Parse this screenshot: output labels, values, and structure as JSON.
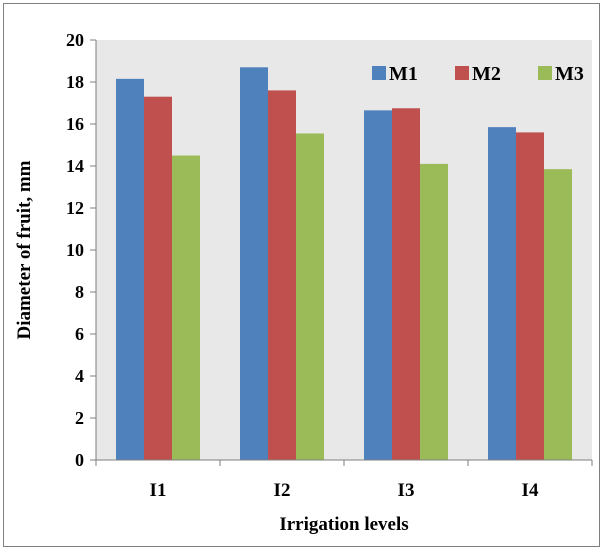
{
  "chart_data": {
    "type": "bar",
    "title": "",
    "xlabel": "Irrigation  levels",
    "ylabel": "Diameter of fruit, mm",
    "categories": [
      "I1",
      "I2",
      "I3",
      "I4"
    ],
    "series": [
      {
        "name": "M1",
        "values": [
          18.15,
          18.7,
          16.65,
          15.85
        ],
        "color": "#4f81bd"
      },
      {
        "name": "M2",
        "values": [
          17.3,
          17.6,
          16.75,
          15.6
        ],
        "color": "#c0504d"
      },
      {
        "name": "M3",
        "values": [
          14.5,
          15.55,
          14.1,
          13.85
        ],
        "color": "#9bbb59"
      }
    ],
    "ylim": [
      0,
      20
    ],
    "yticks": [
      0,
      2,
      4,
      6,
      8,
      10,
      12,
      14,
      16,
      18,
      20
    ],
    "grid": false,
    "plot_background": "#e8e8e8",
    "legend_position": "top-right"
  }
}
